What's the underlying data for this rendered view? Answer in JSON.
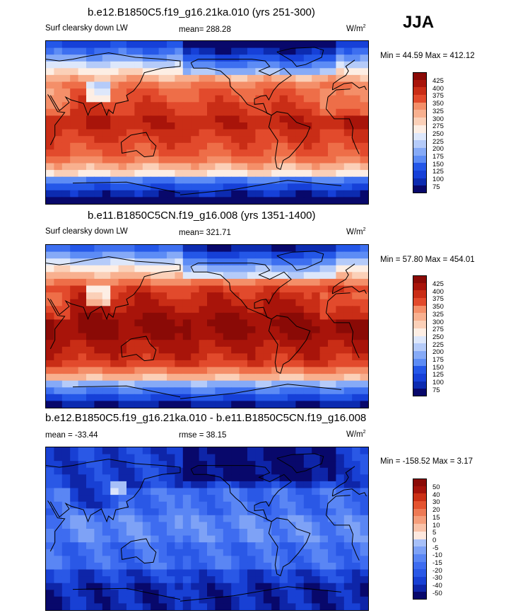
{
  "season": "JJA",
  "colors": {
    "warm_palette": [
      "#08086b",
      "#0c2bb0",
      "#1640d8",
      "#2457e8",
      "#3d6ff0",
      "#5d8cf5",
      "#86aaf7",
      "#b5cbf9",
      "#dde7fb",
      "#fdeee4",
      "#fbd0b8",
      "#f8b08f",
      "#f48f69",
      "#ee6e48",
      "#e24a2c",
      "#c92d16",
      "#a8140a",
      "#8a0a06"
    ],
    "diff_palette": [
      "#08086b",
      "#0e25a8",
      "#1840d4",
      "#2a58e6",
      "#3e6cf0",
      "#5a86f4",
      "#7ea2f6",
      "#a7c0f8",
      "#dbe5fb",
      "#fde8de",
      "#f9c2a8",
      "#f59e7b",
      "#ee7a55",
      "#e4532f",
      "#cb3015",
      "#a4120a",
      "#8a0a06"
    ]
  },
  "chart_data": [
    {
      "type": "heatmap",
      "title": "b.e12.B1850C5.f19_g16.21ka.010 (yrs 251-300)",
      "left_label": "Surf clearsky down LW",
      "center_label": "mean= 288.28",
      "units_base": "W/m",
      "units_exp": "2",
      "min_max": "Min =  44.59 Max = 412.12",
      "min": 44.59,
      "max": 412.12,
      "mean": 288.28,
      "colorbar_levels": [
        425,
        400,
        375,
        350,
        325,
        300,
        275,
        250,
        225,
        200,
        175,
        150,
        125,
        100,
        75
      ]
    },
    {
      "type": "heatmap",
      "title": "b.e11.B1850C5CN.f19_g16.008 (yrs 1351-1400)",
      "left_label": "Surf clearsky down LW",
      "center_label": "mean= 321.71",
      "units_base": "W/m",
      "units_exp": "2",
      "min_max": "Min =  57.80 Max = 454.01",
      "min": 57.8,
      "max": 454.01,
      "mean": 321.71,
      "colorbar_levels": [
        425,
        400,
        375,
        350,
        325,
        300,
        275,
        250,
        225,
        200,
        175,
        150,
        125,
        100,
        75
      ]
    },
    {
      "type": "heatmap",
      "title": "b.e12.B1850C5.f19_g16.21ka.010 - b.e11.B1850C5CN.f19_g16.008",
      "left_label": "mean = -33.44",
      "center_label": "rmse =  38.15",
      "units_base": "W/m",
      "units_exp": "2",
      "min_max": "Min = -158.52 Max =   3.17",
      "min": -158.52,
      "max": 3.17,
      "mean": -33.44,
      "rmse": 38.15,
      "colorbar_levels": [
        50,
        40,
        30,
        20,
        15,
        10,
        5,
        0,
        -5,
        -10,
        -15,
        -20,
        -30,
        -40,
        -50
      ]
    }
  ]
}
